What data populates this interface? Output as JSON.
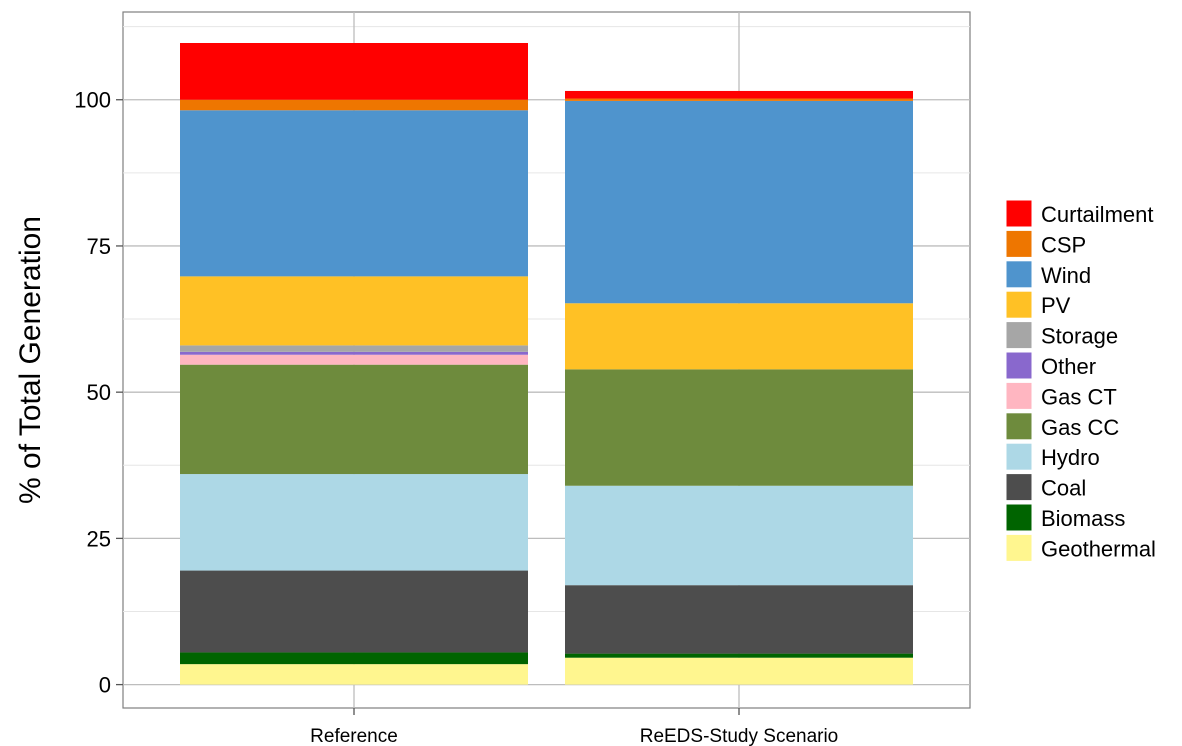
{
  "chart_data": {
    "type": "bar",
    "stacked": true,
    "categories": [
      "Reference",
      "ReEDS-Study Scenario"
    ],
    "ylabel": "% of Total Generation",
    "xlabel": "",
    "ylim": [
      -4,
      115
    ],
    "yticks": [
      0,
      25,
      50,
      75,
      100
    ],
    "grid": true,
    "legend_position": "right",
    "series": [
      {
        "name": "Geothermal",
        "color": "#FFF68F",
        "values": [
          3.5,
          4.6
        ]
      },
      {
        "name": "Biomass",
        "color": "#006400",
        "values": [
          2.0,
          0.7
        ]
      },
      {
        "name": "Coal",
        "color": "#4D4D4D",
        "values": [
          14.0,
          11.7
        ]
      },
      {
        "name": "Hydro",
        "color": "#ADD8E6",
        "values": [
          16.5,
          17.0
        ]
      },
      {
        "name": "Gas CC",
        "color": "#6E8B3D",
        "values": [
          18.7,
          19.9
        ]
      },
      {
        "name": "Gas CT",
        "color": "#FFB6C1",
        "values": [
          1.7,
          0.0
        ]
      },
      {
        "name": "Other",
        "color": "#8968CD",
        "values": [
          0.5,
          0.0
        ]
      },
      {
        "name": "Storage",
        "color": "#A6A6A6",
        "values": [
          1.1,
          0.0
        ]
      },
      {
        "name": "PV",
        "color": "#FFC125",
        "values": [
          11.8,
          11.3
        ]
      },
      {
        "name": "Wind",
        "color": "#4F94CD",
        "values": [
          28.4,
          34.6
        ]
      },
      {
        "name": "CSP",
        "color": "#EE7600",
        "values": [
          1.8,
          0.4
        ]
      },
      {
        "name": "Curtailment",
        "color": "#FF0000",
        "values": [
          9.7,
          1.3
        ]
      }
    ]
  }
}
